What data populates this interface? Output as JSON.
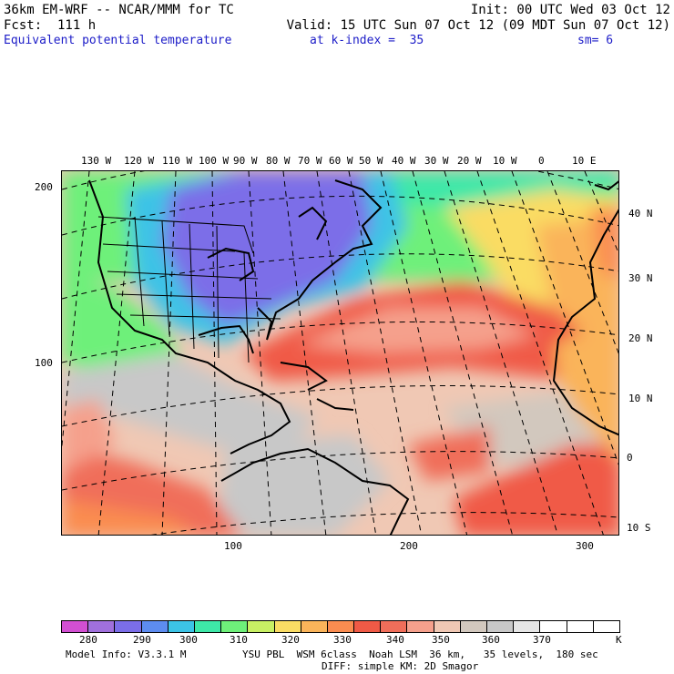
{
  "header": {
    "line1_left": "36km EM-WRF -- NCAR/MMM for TC",
    "line1_right": "Init: 00 UTC Wed 03 Oct 12",
    "line2_left": "Fcst:  111 h",
    "line2_right": "Valid: 15 UTC Sun 07 Oct 12 (09 MDT Sun 07 Oct 12)",
    "field_name": "Equivalent potential temperature",
    "level": "at k-index =  35",
    "smoothing": "sm= 6"
  },
  "map": {
    "top_lon_labels": [
      "130 W",
      "120 W",
      "110 W",
      "100 W",
      "90 W",
      "80 W",
      "70 W",
      "60 W",
      "50 W",
      "40 W",
      "30 W",
      "20 W",
      "10 W",
      "0",
      "10 E"
    ],
    "right_lat_labels": [
      "40 N",
      "30 N",
      "20 N",
      "10 N",
      "0",
      "10 S"
    ],
    "left_grid_labels": [
      "200",
      "100"
    ],
    "bottom_grid_labels": [
      "100",
      "200",
      "300"
    ]
  },
  "colorbar": {
    "colors": [
      "#d24fd2",
      "#a070dc",
      "#7b6ee8",
      "#5d8cf0",
      "#3cc3e6",
      "#3ee8a8",
      "#6ef07a",
      "#c8f064",
      "#fadc64",
      "#fab45a",
      "#fa8c50",
      "#f05a46",
      "#f06e5a",
      "#f5a08c",
      "#f0c8b4",
      "#d2c8be",
      "#c8c8c8",
      "#e6e6e6",
      "#ffffff",
      "#ffffff",
      "#ffffff"
    ],
    "tick_labels": [
      "280",
      "290",
      "300",
      "310",
      "320",
      "330",
      "340",
      "350",
      "360",
      "370"
    ],
    "unit": "K"
  },
  "footer": {
    "model_info": "Model Info: V3.3.1 M",
    "physics": "YSU PBL  WSM 6class  Noah LSM  36 km,   35 levels,  180 sec",
    "diffusion": "DIFF: simple KM: 2D Smagor"
  }
}
